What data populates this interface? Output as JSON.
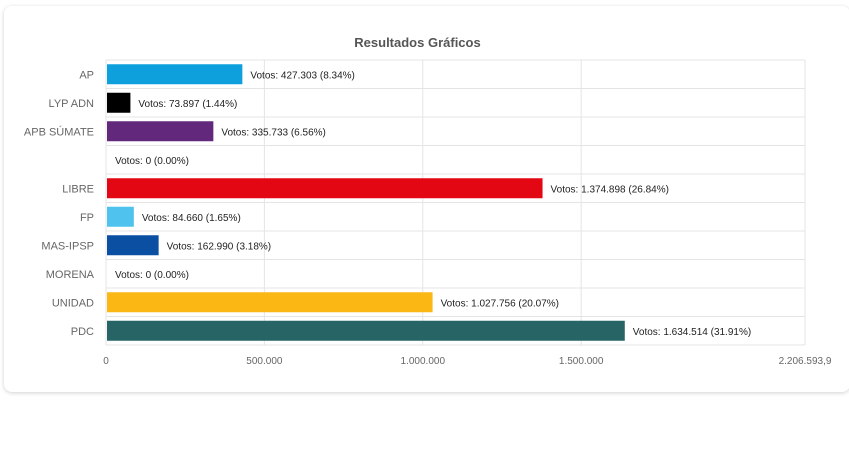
{
  "chart_data": {
    "type": "bar",
    "orientation": "horizontal",
    "title": "Resultados Gráficos",
    "categories": [
      "AP",
      "LYP ADN",
      "APB SÚMATE",
      "",
      "LIBRE",
      "FP",
      "MAS-IPSP",
      "MORENA",
      "UNIDAD",
      "PDC"
    ],
    "values": [
      427303,
      73897,
      335733,
      0,
      1374898,
      84660,
      162990,
      0,
      1027756,
      1634514
    ],
    "data_labels": [
      "Votos: 427.303 (8.34%)",
      "Votos: 73.897 (1.44%)",
      "Votos: 335.733 (6.56%)",
      "Votos: 0 (0.00%)",
      "Votos: 1.374.898 (26.84%)",
      "Votos: 84.660 (1.65%)",
      "Votos: 162.990 (3.18%)",
      "Votos: 0 (0.00%)",
      "Votos: 1.027.756 (20.07%)",
      "Votos: 1.634.514 (31.91%)"
    ],
    "colors": [
      "#0ea0dd",
      "#000000",
      "#62287b",
      "#ffffff",
      "#e30613",
      "#4fc3ee",
      "#0b4fa2",
      "#ffffff",
      "#fbb713",
      "#266466"
    ],
    "xlim": [
      0,
      2206593.9
    ],
    "x_ticks": [
      0,
      500000,
      1000000,
      1500000,
      2206593.9
    ],
    "x_tick_labels": [
      "0",
      "500.000",
      "1.000.000",
      "1.500.000",
      "2.206.593,9"
    ],
    "grid": true,
    "legend": "none"
  }
}
